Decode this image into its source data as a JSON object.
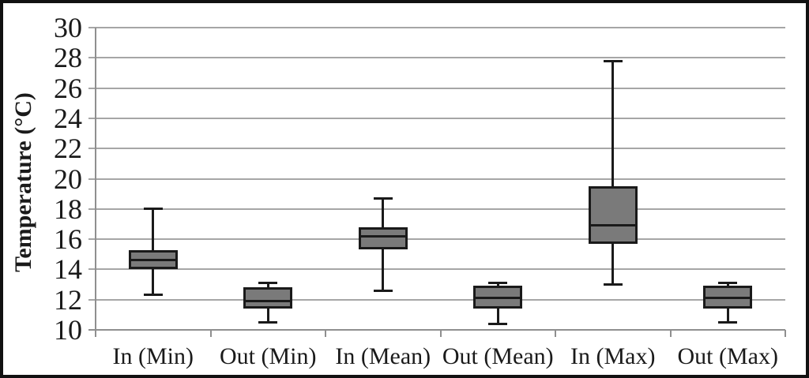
{
  "chart_data": {
    "type": "boxplot",
    "title": "",
    "xlabel": "",
    "ylabel": "Temperature (°C)",
    "ylim": [
      10,
      30
    ],
    "ytick_step": 2,
    "yticks": [
      10,
      12,
      14,
      16,
      18,
      20,
      22,
      24,
      26,
      28,
      30
    ],
    "ytick_labels": [
      "10",
      "12",
      "14",
      "16",
      "18",
      "20",
      "22",
      "24",
      "26",
      "28",
      "30"
    ],
    "grid": "horizontal-only",
    "legend": "none",
    "categories": [
      "In (Min)",
      "Out (Min)",
      "In (Mean)",
      "Out (Mean)",
      "In (Max)",
      "Out (Max)"
    ],
    "series": [
      {
        "category": "In (Min)",
        "min": 12.3,
        "q1": 14.0,
        "median": 14.6,
        "q3": 15.3,
        "max": 18.0
      },
      {
        "category": "Out (Min)",
        "min": 10.5,
        "q1": 11.4,
        "median": 11.9,
        "q3": 12.8,
        "max": 13.1
      },
      {
        "category": "In (Mean)",
        "min": 12.6,
        "q1": 15.3,
        "median": 16.2,
        "q3": 16.8,
        "max": 18.7
      },
      {
        "category": "Out (Mean)",
        "min": 10.4,
        "q1": 11.4,
        "median": 12.1,
        "q3": 12.9,
        "max": 13.1
      },
      {
        "category": "In (Max)",
        "min": 13.0,
        "q1": 15.7,
        "median": 16.9,
        "q3": 19.5,
        "max": 27.8
      },
      {
        "category": "Out (Max)",
        "min": 10.5,
        "q1": 11.4,
        "median": 12.1,
        "q3": 12.9,
        "max": 13.1
      }
    ],
    "colors": {
      "box_fill": "#7a7a7a",
      "box_border": "#1a1a1a",
      "whisker": "#1a1a1a",
      "median": "#1a1a1a",
      "gridline": "#a6a6a6",
      "axis_line": "#8f8f8f",
      "background": "#ffffff",
      "frame_border": "#111111",
      "text": "#1a1a1a"
    }
  }
}
